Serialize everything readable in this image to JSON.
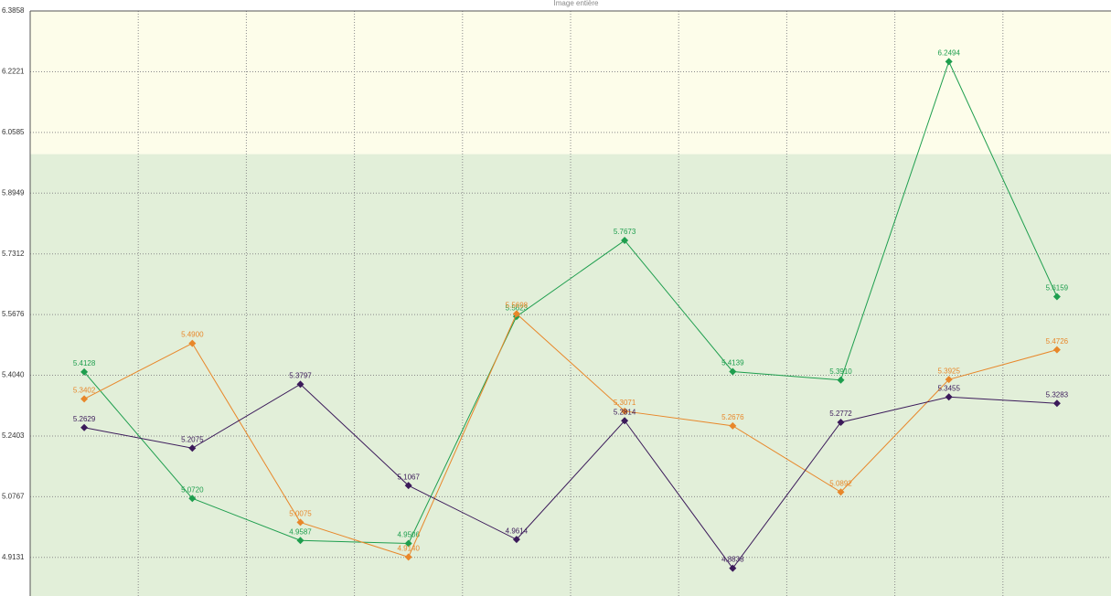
{
  "chart_data": {
    "type": "line",
    "title": "Image entière",
    "categories": [
      null,
      null,
      null,
      null,
      null,
      null,
      null,
      null,
      null,
      null
    ],
    "ylim": [
      4.809,
      6.3858
    ],
    "yticks": [
      4.9131,
      5.0767,
      5.2403,
      {
        "value": 5.404,
        "label": "5.4040"
      },
      5.5676,
      5.7312,
      5.8949,
      6.0585,
      6.2221,
      6.3858
    ],
    "grid": true,
    "zones": [
      {
        "from": 4.809,
        "to": 6.0,
        "color": "#e2efd9"
      },
      {
        "from": 6.0,
        "to": 6.3858,
        "color": "#fdfdea"
      }
    ],
    "series": [
      {
        "color": "#1e9e4e",
        "values": [
          5.4128,
          5.072,
          4.9587,
          4.9506,
          5.5623,
          5.7673,
          5.4139,
          5.391,
          6.2494,
          5.6159
        ],
        "value_labels": [
          "5.4128",
          "5.0720",
          "4.9587",
          "4.9506",
          "5.5623",
          "5.7673",
          "5.4139",
          "5.3910",
          "6.2494",
          "5.6159"
        ]
      },
      {
        "color": "#e8872a",
        "values": [
          5.3402,
          5.49,
          5.0075,
          4.914,
          5.5698,
          5.3071,
          5.2676,
          5.0892,
          5.3925,
          5.4726
        ],
        "value_labels": [
          "5.3402",
          "5.4900",
          "5.0075",
          "4.9140",
          "5.5698",
          "5.3071",
          "5.2676",
          "5.0892",
          "5.3925",
          "5.4726"
        ]
      },
      {
        "color": "#3b1a5a",
        "values": [
          5.2629,
          5.2075,
          5.3797,
          5.1067,
          4.9614,
          5.2814,
          4.8838,
          5.2772,
          5.3455,
          5.3283
        ],
        "value_labels": [
          "5.2629",
          "5.2075",
          "5.3797",
          "5.1067",
          "4.9614",
          "5.2814",
          "4.8838",
          "5.2772",
          "5.3455",
          "5.3283"
        ]
      }
    ]
  }
}
